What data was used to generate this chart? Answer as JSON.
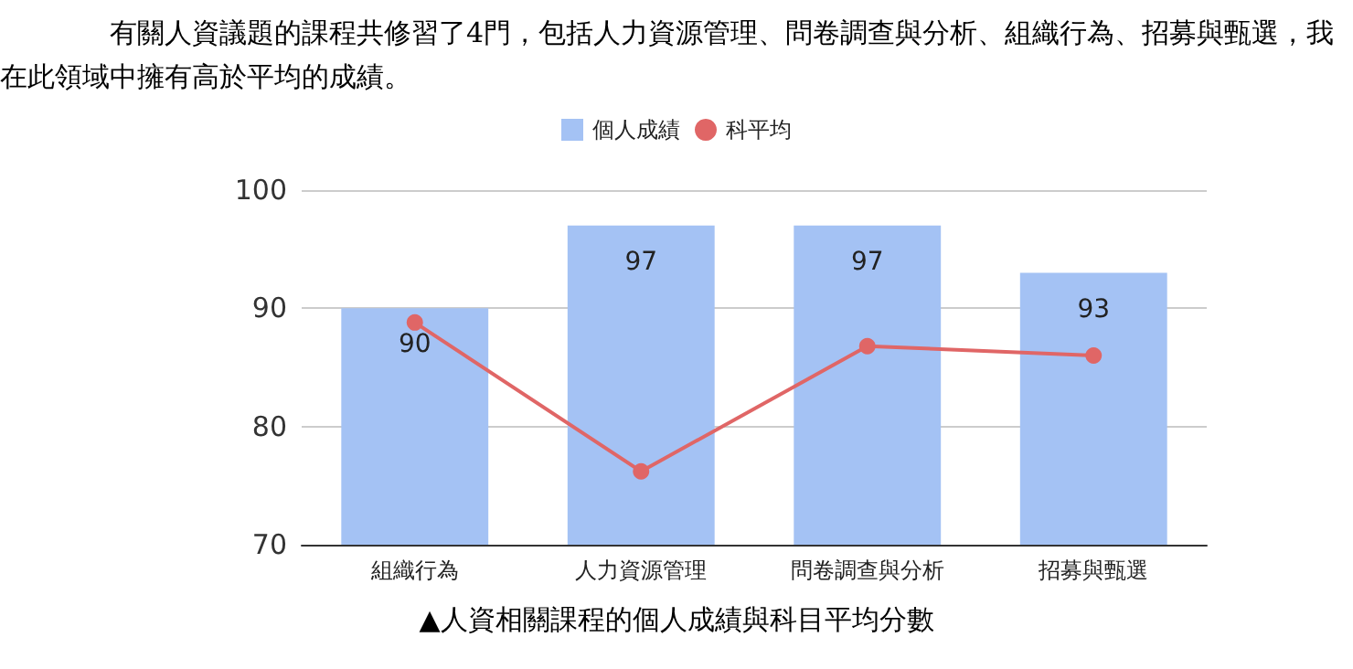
{
  "chart_data": {
    "type": "bar",
    "title": "有關人資議題的課程共修習了4門，包括人力資源管理、問卷調查與分析、組織行為、招募與甄選，我在此領域中擁有高於平均的成績。",
    "categories": [
      "組織行為",
      "人力資源管理",
      "問卷調查與分析",
      "招募與甄選"
    ],
    "series": [
      {
        "name": "個人成績",
        "color": "#a4c2f4",
        "values": [
          90,
          97,
          97,
          93
        ],
        "value_labels": [
          "90",
          "97",
          "97",
          "93"
        ]
      },
      {
        "name": "科平均",
        "type": "line",
        "color": "#e06666",
        "values": [
          88.8,
          76.2,
          86.8,
          86.0
        ]
      }
    ],
    "ylim": [
      70,
      100
    ],
    "yticks": [
      70,
      80,
      90,
      100
    ],
    "grid": "y",
    "legend": "top",
    "marker": "circle",
    "annotations": [
      "▲人資相關課程的個人成績與科目平均分數"
    ]
  }
}
